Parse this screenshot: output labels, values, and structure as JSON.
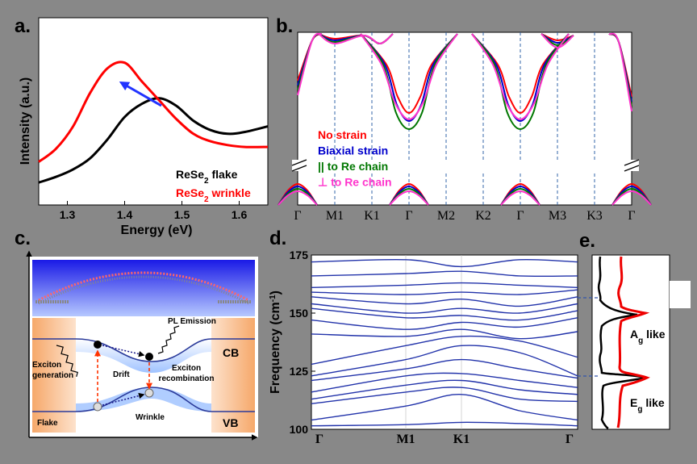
{
  "chart_data": [
    {
      "panel": "a.",
      "type": "line",
      "xlabel": "Energy (eV)",
      "ylabel": "Intensity (a.u.)",
      "xlim": [
        1.25,
        1.65
      ],
      "xticks": [
        "1.3",
        "1.4",
        "1.5",
        "1.6"
      ],
      "series": [
        {
          "name": "ReSe",
          "sub": "2",
          "suffix": " flake",
          "color": "#000000",
          "x": [
            1.25,
            1.28,
            1.31,
            1.34,
            1.37,
            1.4,
            1.43,
            1.46,
            1.49,
            1.52,
            1.55,
            1.58,
            1.61,
            1.65
          ],
          "y": [
            0.12,
            0.15,
            0.19,
            0.25,
            0.35,
            0.47,
            0.54,
            0.57,
            0.53,
            0.45,
            0.4,
            0.38,
            0.39,
            0.42
          ]
        },
        {
          "name": "ReSe",
          "sub": "2",
          "suffix": " wrinkle",
          "color": "#ff0000",
          "x": [
            1.25,
            1.28,
            1.31,
            1.34,
            1.37,
            1.4,
            1.43,
            1.46,
            1.49,
            1.52,
            1.55,
            1.58,
            1.61,
            1.65
          ],
          "y": [
            0.23,
            0.3,
            0.42,
            0.6,
            0.73,
            0.76,
            0.66,
            0.56,
            0.46,
            0.38,
            0.34,
            0.32,
            0.31,
            0.31
          ]
        }
      ]
    },
    {
      "panel": "b.",
      "type": "line",
      "xticks": [
        "Γ",
        "M1",
        "K1",
        "Γ",
        "M2",
        "K2",
        "Γ",
        "M3",
        "K3",
        "Γ"
      ],
      "series": [
        {
          "name": "No strain",
          "color": "#ff0000"
        },
        {
          "name": "Biaxial strain",
          "color": "#0000cc"
        },
        {
          "name": "|| to Re chain",
          "color": "#007700"
        },
        {
          "name": "⊥ to Re chain",
          "color": "#ff33cc"
        }
      ]
    },
    {
      "panel": "d.",
      "type": "line",
      "ylabel": "Frequency (cm",
      "ylabel_sup": "-1",
      "ylabel_end": ")",
      "ylim": [
        100,
        175
      ],
      "yticks": [
        "100",
        "125",
        "150",
        "175"
      ],
      "xticks": [
        "Γ",
        "M1",
        "K1",
        "Γ"
      ],
      "series_color": "#2233aa",
      "branches": [
        [
          101.5,
          102,
          103,
          102.5,
          101.5
        ],
        [
          104,
          110,
          115,
          108,
          104
        ],
        [
          111,
          116,
          118,
          113,
          112
        ],
        [
          113,
          119,
          121,
          117,
          115
        ],
        [
          116,
          123,
          124,
          121,
          118
        ],
        [
          121,
          126,
          130,
          126,
          122
        ],
        [
          123,
          130,
          136,
          133,
          123
        ],
        [
          128,
          136,
          140,
          138,
          131
        ],
        [
          141,
          140,
          143,
          139,
          142
        ],
        [
          147,
          143,
          146,
          144,
          148
        ],
        [
          152,
          148,
          149,
          147,
          151
        ],
        [
          154,
          150,
          152,
          150,
          154
        ],
        [
          157,
          154,
          156,
          153,
          157
        ],
        [
          159,
          158,
          159,
          158,
          160
        ],
        [
          161,
          162,
          163,
          162,
          161
        ],
        [
          166,
          167,
          168,
          166,
          166
        ],
        [
          172,
          173,
          170,
          173,
          172
        ]
      ]
    },
    {
      "panel": "e.",
      "type": "line",
      "modes": [
        {
          "name": "A",
          "sub": "g",
          "suffix": " like"
        },
        {
          "name": "E",
          "sub": "g",
          "suffix": " like"
        }
      ]
    }
  ],
  "schematic": {
    "panel": "c.",
    "labels": {
      "pl_emission": "PL Emission",
      "cb": "CB",
      "vb": "VB",
      "exciton_generation": "Exciton generation",
      "drift": "Drift",
      "exciton_recombination": "Exciton recombination",
      "flake": "Flake",
      "wrinkle": "Wrinkle"
    }
  }
}
